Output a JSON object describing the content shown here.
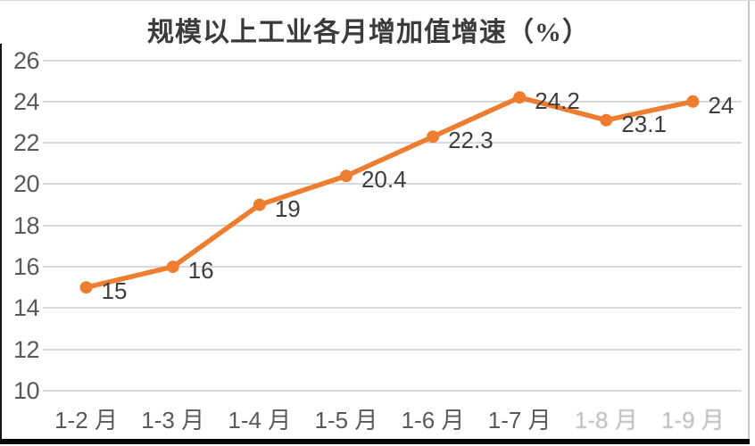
{
  "chart_data": {
    "type": "line",
    "title": "规模以上工业各月增加值增速（%）",
    "categories": [
      "1-2 月",
      "1-3 月",
      "1-4 月",
      "1-5 月",
      "1-6 月",
      "1-7 月",
      "1-8 月",
      "1-9 月"
    ],
    "values": [
      15,
      16,
      19,
      20.4,
      22.3,
      24.2,
      23.1,
      24
    ],
    "data_labels": [
      "15",
      "16",
      "19",
      "20.4",
      "22.3",
      "24.2",
      "23.1",
      "24"
    ],
    "faded_category_indices": [
      6,
      7
    ],
    "yticks": [
      26,
      24,
      22,
      20,
      18,
      16,
      14,
      12,
      10
    ],
    "ylim": [
      10,
      26
    ],
    "xlabel": "",
    "ylabel": "",
    "grid": true,
    "legend": "none",
    "series_name": "规模以上工业各月增加值增速",
    "colors": {
      "line": "#ED7D31",
      "marker": "#ED7D31",
      "grid": "#D9D9D9",
      "axis_text": "#595959",
      "data_label_text": "#3D3D3D",
      "title_text": "#3B3B3B",
      "background": "#FFFFFF"
    }
  }
}
